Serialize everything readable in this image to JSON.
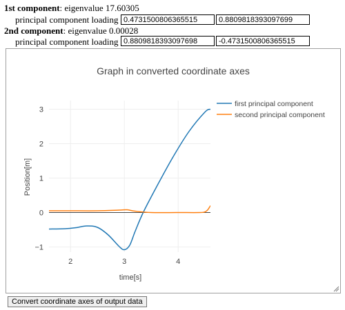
{
  "components": [
    {
      "heading": "1st component",
      "eigen_text": ": eigenvalue 17.60305",
      "loading_label": "principal component loading",
      "loading_1": "0.4731500806365515",
      "loading_2": "0.8809818393097699"
    },
    {
      "heading": "2nd component",
      "eigen_text": ": eigenvalue 0.00028",
      "loading_label": "principal component loading",
      "loading_1": "0.8809818393097698",
      "loading_2": "-0.4731500806365515"
    }
  ],
  "convert_button_label": "Convert coordinate axes of output data",
  "colors": {
    "series1": "#1f77b4",
    "series2": "#ff7f0e",
    "grid": "#eeeeee",
    "text": "#444444"
  },
  "chart_data": {
    "type": "line",
    "title": "Graph in converted coordinate axes",
    "xlabel": "time[s]",
    "ylabel": "Position[m]",
    "xlim": [
      1.6,
      4.6
    ],
    "ylim": [
      -1.15,
      3.25
    ],
    "xticks": [
      2,
      3,
      4
    ],
    "yticks": [
      -1,
      0,
      1,
      2,
      3
    ],
    "xtick_labels": [
      "2",
      "3",
      "4"
    ],
    "ytick_labels": [
      "−1",
      "0",
      "1",
      "2",
      "3"
    ],
    "legend_position": "top-right",
    "series": [
      {
        "name": "first principal component",
        "x": [
          1.6,
          1.9,
          2.1,
          2.3,
          2.5,
          2.7,
          2.9,
          3.0,
          3.1,
          3.2,
          3.35,
          3.6,
          3.9,
          4.2,
          4.5,
          4.6
        ],
        "y": [
          -0.48,
          -0.47,
          -0.44,
          -0.39,
          -0.43,
          -0.65,
          -0.98,
          -1.08,
          -0.95,
          -0.55,
          0.0,
          0.75,
          1.6,
          2.35,
          2.92,
          3.0
        ]
      },
      {
        "name": "second principal component",
        "x": [
          1.6,
          2.0,
          2.5,
          2.9,
          3.05,
          3.2,
          3.5,
          4.0,
          4.4,
          4.5,
          4.55,
          4.6
        ],
        "y": [
          0.05,
          0.05,
          0.05,
          0.07,
          0.08,
          0.04,
          0.0,
          0.0,
          0.0,
          0.02,
          0.08,
          0.2
        ]
      }
    ]
  }
}
